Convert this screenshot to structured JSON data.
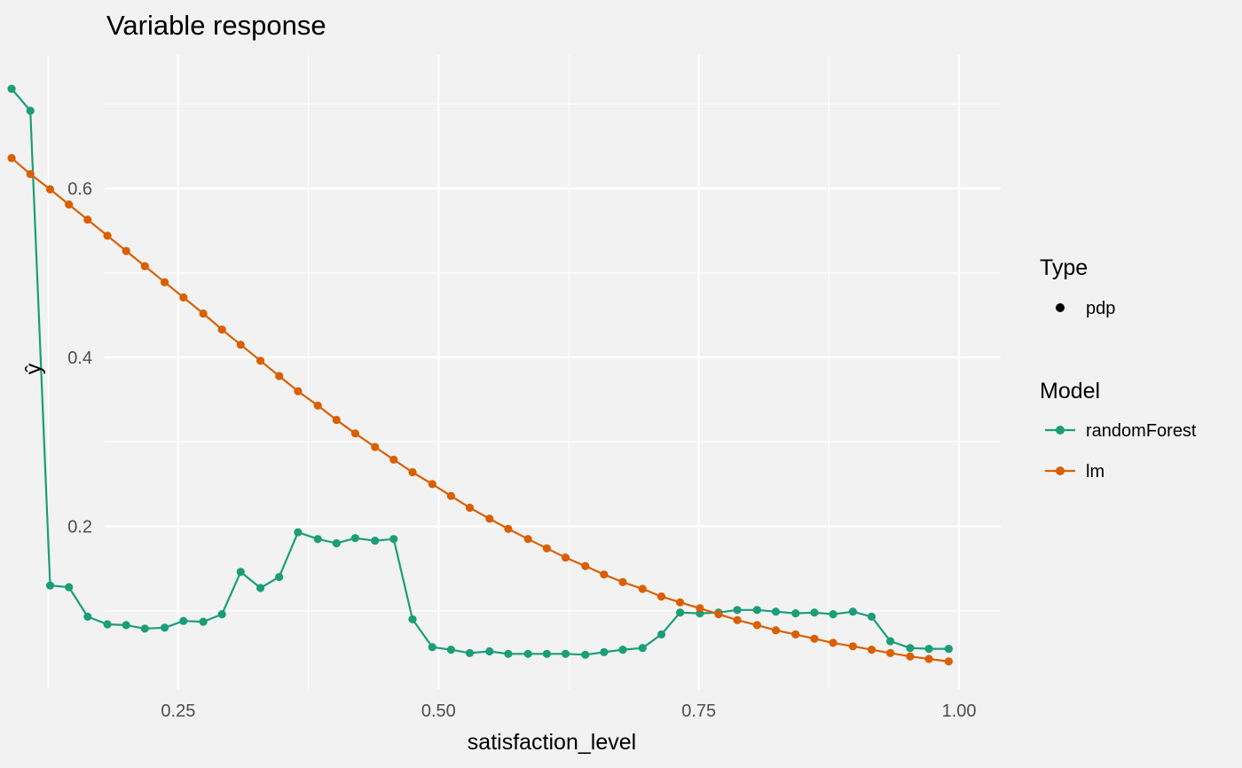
{
  "chart_data": {
    "type": "line",
    "title": "Variable response",
    "xlabel": "satisfaction_level",
    "ylabel": "ŷ",
    "xlim": [
      0.09,
      1.0
    ],
    "ylim": [
      0.03,
      0.72
    ],
    "x_ticks": [
      0.25,
      0.5,
      0.75,
      1.0
    ],
    "x_tick_labels": [
      "0.25",
      "0.50",
      "0.75",
      "1.00"
    ],
    "y_ticks": [
      0.2,
      0.4,
      0.6
    ],
    "y_tick_labels": [
      "0.2",
      "0.4",
      "0.6"
    ],
    "grid": true,
    "legend_position": "right",
    "legend": {
      "type_title": "Type",
      "type_entries": [
        "pdp"
      ],
      "model_title": "Model",
      "model_entries": [
        "randomForest",
        "lm"
      ]
    },
    "x": [
      0.09,
      0.108,
      0.127,
      0.145,
      0.163,
      0.182,
      0.2,
      0.218,
      0.237,
      0.255,
      0.274,
      0.292,
      0.31,
      0.329,
      0.347,
      0.365,
      0.384,
      0.402,
      0.42,
      0.439,
      0.457,
      0.475,
      0.494,
      0.512,
      0.53,
      0.549,
      0.567,
      0.586,
      0.604,
      0.622,
      0.641,
      0.659,
      0.677,
      0.696,
      0.714,
      0.732,
      0.751,
      0.769,
      0.787,
      0.806,
      0.824,
      0.843,
      0.861,
      0.879,
      0.898,
      0.916,
      0.934,
      0.953,
      0.971,
      0.99
    ],
    "series": [
      {
        "name": "randomForest",
        "color": "#1b9e77",
        "values": [
          0.718,
          0.692,
          0.13,
          0.128,
          0.093,
          0.084,
          0.083,
          0.079,
          0.08,
          0.088,
          0.087,
          0.096,
          0.146,
          0.127,
          0.14,
          0.193,
          0.185,
          0.18,
          0.186,
          0.183,
          0.185,
          0.09,
          0.057,
          0.054,
          0.05,
          0.052,
          0.049,
          0.049,
          0.049,
          0.049,
          0.048,
          0.051,
          0.054,
          0.056,
          0.072,
          0.098,
          0.097,
          0.098,
          0.101,
          0.101,
          0.099,
          0.097,
          0.098,
          0.096,
          0.099,
          0.093,
          0.064,
          0.056,
          0.055,
          0.055
        ]
      },
      {
        "name": "lm",
        "color": "#d95f02",
        "values": [
          0.636,
          0.617,
          0.599,
          0.581,
          0.563,
          0.544,
          0.526,
          0.508,
          0.489,
          0.471,
          0.452,
          0.433,
          0.415,
          0.396,
          0.378,
          0.36,
          0.343,
          0.326,
          0.31,
          0.294,
          0.279,
          0.264,
          0.25,
          0.236,
          0.222,
          0.209,
          0.197,
          0.185,
          0.174,
          0.163,
          0.153,
          0.143,
          0.134,
          0.126,
          0.117,
          0.11,
          0.103,
          0.096,
          0.089,
          0.083,
          0.077,
          0.072,
          0.067,
          0.062,
          0.058,
          0.054,
          0.05,
          0.046,
          0.043,
          0.04
        ]
      }
    ]
  }
}
